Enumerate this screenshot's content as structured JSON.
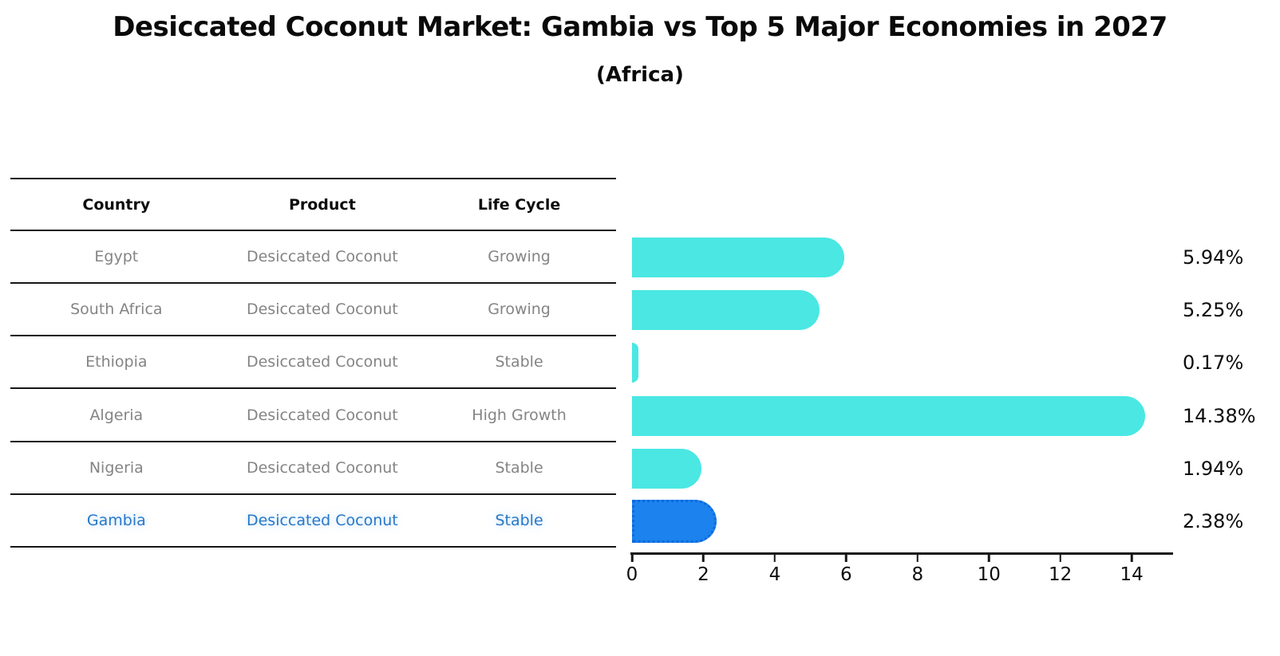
{
  "chart_data": {
    "type": "bar",
    "orientation": "horizontal",
    "title": "Desiccated Coconut Market: Gambia vs Top 5 Major Economies in 2027",
    "subtitle": "(Africa)",
    "categories": [
      "Egypt",
      "South Africa",
      "Ethiopia",
      "Algeria",
      "Nigeria",
      "Gambia"
    ],
    "values": [
      5.94,
      5.25,
      0.17,
      14.38,
      1.94,
      2.38
    ],
    "value_labels": [
      "5.94%",
      "5.25%",
      "0.17%",
      "14.38%",
      "1.94%",
      "2.38%"
    ],
    "x_ticks": [
      0,
      2,
      4,
      6,
      8,
      10,
      12,
      14
    ],
    "xlim": [
      0,
      15.16
    ],
    "xlabel": "",
    "ylabel": "",
    "grid": false,
    "legend": "none",
    "bar_color": "#4ae7e3",
    "highlight": {
      "index": 5,
      "category": "Gambia",
      "color": "#1b82ee",
      "border_style": "dotted",
      "text_color": "#2878c8"
    }
  },
  "table": {
    "headers": [
      "Country",
      "Product",
      "Life Cycle"
    ],
    "rows": [
      {
        "country": "Egypt",
        "product": "Desiccated Coconut",
        "life_cycle": "Growing"
      },
      {
        "country": "South Africa",
        "product": "Desiccated Coconut",
        "life_cycle": "Growing"
      },
      {
        "country": "Ethiopia",
        "product": "Desiccated Coconut",
        "life_cycle": "Stable"
      },
      {
        "country": "Algeria",
        "product": "Desiccated Coconut",
        "life_cycle": "High Growth"
      },
      {
        "country": "Nigeria",
        "product": "Desiccated Coconut",
        "life_cycle": "Stable"
      },
      {
        "country": "Gambia",
        "product": "Desiccated Coconut",
        "life_cycle": "Stable"
      }
    ]
  },
  "colors": {
    "background": "#ffffff",
    "bar": "#4ae7e3",
    "highlight_bar": "#1b82ee",
    "highlight_text": "#2878c8",
    "table_text": "#848484",
    "axis": "#161616"
  }
}
